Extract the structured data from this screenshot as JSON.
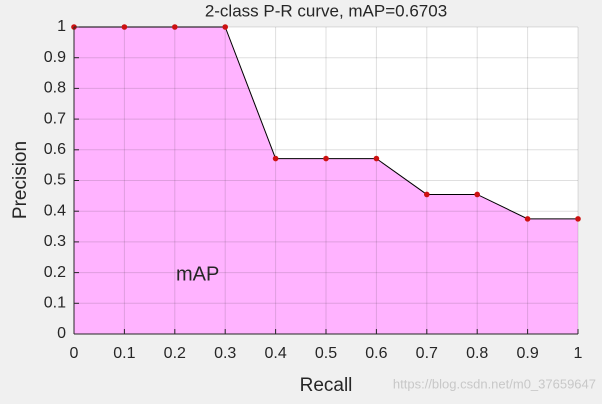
{
  "chart_data": {
    "type": "area",
    "title": "2-class P-R curve, mAP=0.6703",
    "xlabel": "Recall",
    "ylabel": "Precision",
    "annotation": "mAP",
    "watermark": "https://blog.csdn.net/m0_37659647",
    "x": [
      0,
      0.1,
      0.2,
      0.3,
      0.4,
      0.5,
      0.6,
      0.7,
      0.8,
      0.9,
      1
    ],
    "series": [
      {
        "name": "P-R",
        "fill": "#ffb3ff",
        "color": "#000000",
        "marker_color": "#cc1111",
        "values": [
          1,
          1,
          1,
          1,
          0.5714,
          0.5714,
          0.5714,
          0.4545,
          0.4545,
          0.375,
          0.375
        ]
      }
    ],
    "xlim": [
      0,
      1
    ],
    "ylim": [
      0,
      1
    ],
    "xticks": [
      0,
      0.1,
      0.2,
      0.3,
      0.4,
      0.5,
      0.6,
      0.7,
      0.8,
      0.9,
      1
    ],
    "yticks": [
      0,
      0.1,
      0.2,
      0.3,
      0.4,
      0.5,
      0.6,
      0.7,
      0.8,
      0.9,
      1
    ],
    "grid": true
  }
}
